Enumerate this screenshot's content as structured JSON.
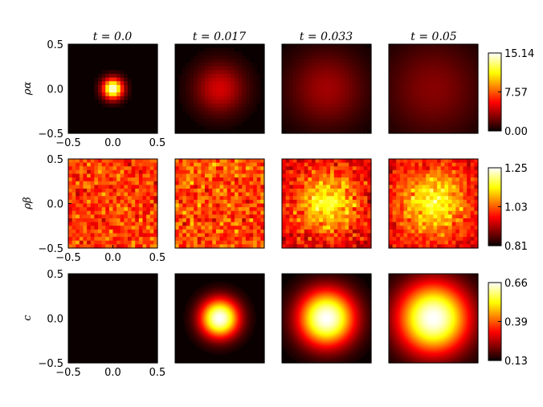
{
  "chart_data": {
    "type": "heatmap",
    "column_titles": [
      "t = 0.0",
      "t = 0.017",
      "t = 0.033",
      "t = 0.05"
    ],
    "row_labels": [
      "ρα",
      "ρβ",
      "c"
    ],
    "axis_ticks": [
      "−0.5",
      "0.0",
      "0.5"
    ],
    "xlim": [
      -0.5,
      0.5
    ],
    "ylim": [
      -0.5,
      0.5
    ],
    "colormap": "hot",
    "colorbars": [
      {
        "ticks": [
          "15.14",
          "7.57",
          "0.00"
        ],
        "min": 0.0,
        "max": 15.14
      },
      {
        "ticks": [
          "1.25",
          "1.03",
          "0.81"
        ],
        "min": 0.81,
        "max": 1.25
      },
      {
        "ticks": [
          "0.66",
          "0.39",
          "0.13"
        ],
        "min": 0.13,
        "max": 0.66
      }
    ],
    "fields": {
      "rho_alpha": [
        {
          "t": 0.0,
          "shape": "gaussian",
          "peak": 15.14,
          "sigma": 0.08,
          "noise": 0.0
        },
        {
          "t": 0.017,
          "shape": "gaussian",
          "peak": 4.6,
          "sigma": 0.2,
          "noise": 0.0
        },
        {
          "t": 0.033,
          "shape": "gaussian",
          "peak": 3.4,
          "sigma": 0.3,
          "noise": 0.0
        },
        {
          "t": 0.05,
          "shape": "gaussian",
          "peak": 2.8,
          "sigma": 0.38,
          "noise": 0.0
        }
      ],
      "rho_beta": [
        {
          "t": 0.0,
          "shape": "noise",
          "mean": 1.01,
          "noise": 0.07
        },
        {
          "t": 0.017,
          "shape": "noise",
          "mean": 1.02,
          "noise": 0.08
        },
        {
          "t": 0.033,
          "shape": "gaussian+noise",
          "base": 0.95,
          "peak": 0.2,
          "sigma": 0.25,
          "noise": 0.07
        },
        {
          "t": 0.05,
          "shape": "gaussian+noise",
          "base": 0.96,
          "peak": 0.2,
          "sigma": 0.25,
          "noise": 0.06
        }
      ],
      "c": [
        {
          "t": 0.0,
          "shape": "flat",
          "value": 0.13
        },
        {
          "t": 0.017,
          "shape": "disk",
          "peak": 0.66,
          "radius": 0.22
        },
        {
          "t": 0.033,
          "shape": "disk",
          "peak": 0.66,
          "radius": 0.32
        },
        {
          "t": 0.05,
          "shape": "disk",
          "peak": 0.66,
          "radius": 0.4
        }
      ]
    }
  }
}
